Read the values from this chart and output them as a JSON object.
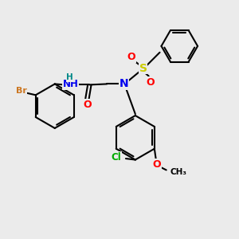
{
  "bg_color": "#ebebeb",
  "bond_color": "#000000",
  "atom_colors": {
    "Br": "#cc7722",
    "N": "#0000ee",
    "O": "#ff0000",
    "S": "#cccc00",
    "Cl": "#00aa00",
    "H": "#008888",
    "C": "#000000"
  },
  "figsize": [
    3.0,
    3.0
  ],
  "dpi": 100
}
